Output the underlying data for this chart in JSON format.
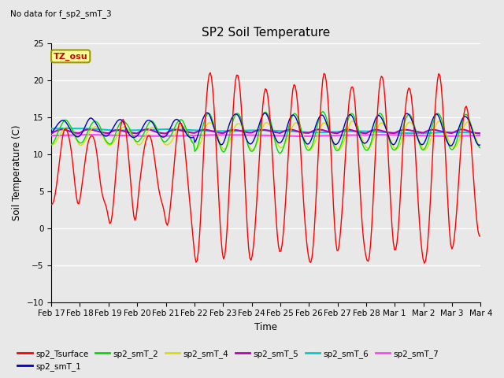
{
  "title": "SP2 Soil Temperature",
  "subtitle": "No data for f_sp2_smT_3",
  "xlabel": "Time",
  "ylabel": "Soil Temperature (C)",
  "ylim": [
    -10,
    25
  ],
  "yticks": [
    -10,
    -5,
    0,
    5,
    10,
    15,
    20,
    25
  ],
  "xtick_labels": [
    "Feb 17",
    "Feb 18",
    "Feb 19",
    "Feb 20",
    "Feb 21",
    "Feb 22",
    "Feb 23",
    "Feb 24",
    "Feb 25",
    "Feb 26",
    "Feb 27",
    "Feb 28",
    "Mar 1",
    "Mar 2",
    "Mar 3",
    "Mar 4"
  ],
  "annotation_text": "TZ_osu",
  "annotation_color": "#cc0000",
  "annotation_bg": "#ffff99",
  "annotation_border": "#999900",
  "background_color": "#e8e8e8",
  "plot_bg_color": "#e8e8e8",
  "grid_color": "#ffffff",
  "series_colors": {
    "sp2_Tsurface": "#ff0000",
    "sp2_smT_1": "#0000cc",
    "sp2_smT_2": "#00dd00",
    "sp2_smT_4": "#dddd00",
    "sp2_smT_5": "#bb00bb",
    "sp2_smT_6": "#00cccc",
    "sp2_smT_7": "#ff44ff"
  }
}
